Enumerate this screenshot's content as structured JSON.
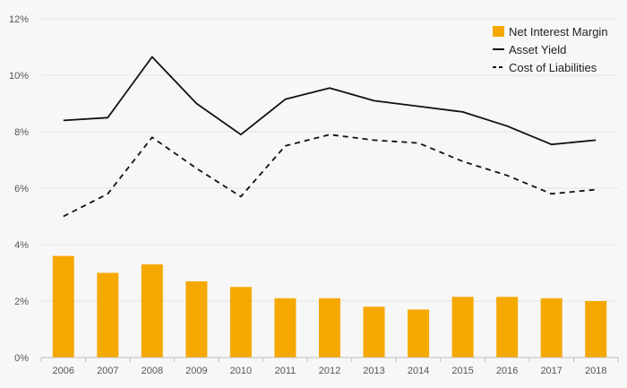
{
  "chart_data": {
    "type": "bar",
    "categories": [
      "2006",
      "2007",
      "2008",
      "2009",
      "2010",
      "2011",
      "2012",
      "2013",
      "2014",
      "2015",
      "2016",
      "2017",
      "2018"
    ],
    "series": [
      {
        "name": "Net Interest Margin",
        "type": "bar",
        "color": "#f5a800",
        "values": [
          3.6,
          3.0,
          3.3,
          2.7,
          2.5,
          2.1,
          2.1,
          1.8,
          1.7,
          2.15,
          2.15,
          2.1,
          2.0
        ]
      },
      {
        "name": "Asset Yield",
        "type": "line",
        "style": "solid",
        "color": "#111111",
        "values": [
          8.4,
          8.5,
          10.65,
          9.0,
          7.9,
          9.15,
          9.55,
          9.1,
          8.9,
          8.7,
          8.2,
          7.55,
          7.7
        ]
      },
      {
        "name": "Cost of Liabilities",
        "type": "line",
        "style": "dashed",
        "color": "#111111",
        "values": [
          5.0,
          5.8,
          7.8,
          6.7,
          5.7,
          7.5,
          7.9,
          7.7,
          7.6,
          6.95,
          6.45,
          5.8,
          5.95
        ]
      }
    ],
    "yticks": [
      0,
      2,
      4,
      6,
      8,
      10,
      12
    ],
    "ytick_labels": [
      "0%",
      "2%",
      "4%",
      "6%",
      "8%",
      "10%",
      "12%"
    ],
    "ylim": [
      0,
      12
    ],
    "grid": "horizontal",
    "legend_position": "top-right",
    "title": "",
    "xlabel": "",
    "ylabel": ""
  }
}
